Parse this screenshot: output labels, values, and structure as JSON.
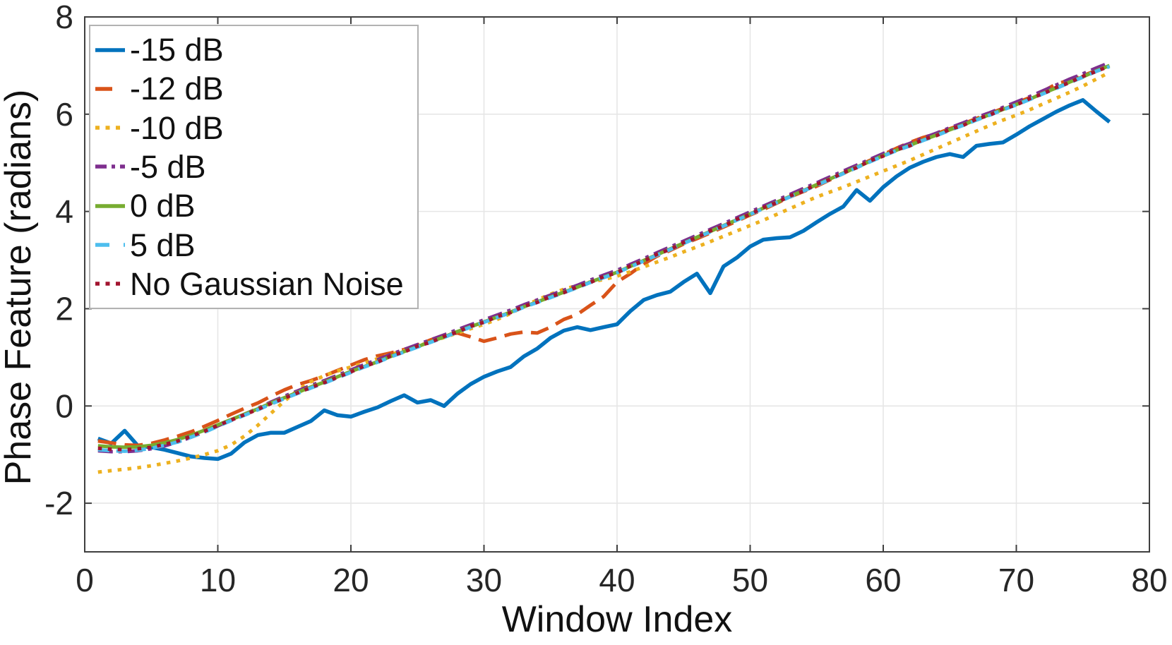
{
  "axes_style": {
    "spine_color": "#3f3f3f",
    "grid_color": "#e6e6e6",
    "tick_label_color": "#262626",
    "background": "#ffffff"
  },
  "chart_data": {
    "type": "line",
    "title": "",
    "xlabel": "Window Index",
    "ylabel": "Phase Feature (radians)",
    "xlim": [
      0,
      80
    ],
    "ylim": [
      -3,
      8
    ],
    "xticks": [
      0,
      10,
      20,
      30,
      40,
      50,
      60,
      70,
      80
    ],
    "yticks": [
      -2,
      0,
      2,
      4,
      6,
      8
    ],
    "grid": true,
    "legend_position": "top-left",
    "x": [
      1,
      2,
      3,
      4,
      5,
      6,
      7,
      8,
      9,
      10,
      11,
      12,
      13,
      14,
      15,
      16,
      17,
      18,
      19,
      20,
      21,
      22,
      23,
      24,
      25,
      26,
      27,
      28,
      29,
      30,
      31,
      32,
      33,
      34,
      35,
      36,
      37,
      38,
      39,
      40,
      41,
      42,
      43,
      44,
      45,
      46,
      47,
      48,
      49,
      50,
      51,
      52,
      53,
      54,
      55,
      56,
      57,
      58,
      59,
      60,
      61,
      62,
      63,
      64,
      65,
      66,
      67,
      68,
      69,
      70,
      71,
      72,
      73,
      74,
      75,
      76,
      77
    ],
    "series": [
      {
        "name": "-15 dB",
        "color": "#0072BD",
        "style": "solid",
        "width": 5.5,
        "values": [
          -0.67,
          -0.77,
          -0.51,
          -0.82,
          -0.85,
          -0.9,
          -0.97,
          -1.04,
          -1.07,
          -1.09,
          -0.98,
          -0.75,
          -0.6,
          -0.55,
          -0.55,
          -0.43,
          -0.31,
          -0.09,
          -0.19,
          -0.22,
          -0.12,
          -0.03,
          0.1,
          0.22,
          0.07,
          0.12,
          0.0,
          0.25,
          0.45,
          0.6,
          0.71,
          0.8,
          1.02,
          1.18,
          1.4,
          1.55,
          1.62,
          1.56,
          1.62,
          1.68,
          1.95,
          2.18,
          2.28,
          2.35,
          2.55,
          2.72,
          2.32,
          2.87,
          3.05,
          3.28,
          3.42,
          3.45,
          3.47,
          3.6,
          3.78,
          3.95,
          4.1,
          4.44,
          4.22,
          4.5,
          4.72,
          4.9,
          5.02,
          5.12,
          5.18,
          5.12,
          5.35,
          5.39,
          5.42,
          5.58,
          5.75,
          5.9,
          6.05,
          6.18,
          6.29,
          6.06,
          5.84
        ]
      },
      {
        "name": "-12 dB",
        "color": "#D95319",
        "style": "dash",
        "width": 5,
        "values": [
          -0.72,
          -0.76,
          -0.8,
          -0.81,
          -0.77,
          -0.7,
          -0.62,
          -0.53,
          -0.42,
          -0.3,
          -0.17,
          -0.05,
          0.06,
          0.2,
          0.33,
          0.44,
          0.52,
          0.62,
          0.73,
          0.84,
          0.95,
          1.03,
          1.09,
          1.16,
          1.25,
          1.36,
          1.46,
          1.5,
          1.42,
          1.33,
          1.4,
          1.48,
          1.52,
          1.5,
          1.62,
          1.78,
          1.88,
          2.07,
          2.25,
          2.55,
          2.72,
          2.92,
          3.08,
          3.2,
          3.33,
          3.44,
          3.56,
          3.68,
          3.8,
          3.93,
          4.04,
          4.17,
          4.3,
          4.41,
          4.52,
          4.65,
          4.78,
          4.92,
          5.05,
          5.17,
          5.3,
          5.42,
          5.52,
          5.6,
          5.7,
          5.8,
          5.91,
          6.01,
          6.12,
          6.23,
          6.34,
          6.47,
          6.62,
          6.7,
          6.79,
          6.9,
          6.98
        ]
      },
      {
        "name": "-10 dB",
        "color": "#EDB120",
        "style": "dot",
        "width": 5,
        "values": [
          -1.36,
          -1.33,
          -1.3,
          -1.27,
          -1.23,
          -1.18,
          -1.13,
          -1.07,
          -1.0,
          -0.92,
          -0.8,
          -0.62,
          -0.4,
          -0.15,
          0.1,
          0.32,
          0.5,
          0.62,
          0.72,
          0.8,
          0.88,
          0.97,
          1.06,
          1.14,
          1.23,
          1.32,
          1.41,
          1.5,
          1.59,
          1.68,
          1.78,
          1.9,
          2.05,
          2.18,
          2.3,
          2.4,
          2.48,
          2.55,
          2.6,
          2.67,
          2.76,
          2.86,
          2.96,
          3.06,
          3.17,
          3.27,
          3.38,
          3.49,
          3.6,
          3.71,
          3.82,
          3.94,
          4.06,
          4.18,
          4.3,
          4.4,
          4.5,
          4.61,
          4.72,
          4.83,
          4.94,
          5.05,
          5.17,
          5.29,
          5.41,
          5.53,
          5.65,
          5.77,
          5.88,
          5.98,
          6.09,
          6.21,
          6.33,
          6.45,
          6.58,
          6.72,
          6.86
        ]
      },
      {
        "name": "-5 dB",
        "color": "#7E2F8E",
        "style": "dashdot",
        "width": 5,
        "values": [
          -0.92,
          -0.94,
          -0.94,
          -0.92,
          -0.88,
          -0.82,
          -0.74,
          -0.64,
          -0.53,
          -0.41,
          -0.29,
          -0.17,
          -0.05,
          0.08,
          0.2,
          0.31,
          0.42,
          0.52,
          0.63,
          0.74,
          0.85,
          0.95,
          1.06,
          1.16,
          1.26,
          1.36,
          1.46,
          1.57,
          1.67,
          1.77,
          1.87,
          1.97,
          2.08,
          2.18,
          2.28,
          2.38,
          2.48,
          2.59,
          2.69,
          2.79,
          2.91,
          3.03,
          3.15,
          3.27,
          3.39,
          3.51,
          3.63,
          3.75,
          3.87,
          3.99,
          4.11,
          4.23,
          4.35,
          4.47,
          4.59,
          4.71,
          4.83,
          4.95,
          5.07,
          5.19,
          5.3,
          5.4,
          5.51,
          5.61,
          5.72,
          5.82,
          5.93,
          6.03,
          6.14,
          6.25,
          6.36,
          6.48,
          6.6,
          6.72,
          6.83,
          6.95,
          7.06
        ]
      },
      {
        "name": "0 dB",
        "color": "#77AC30",
        "style": "solid",
        "width": 5,
        "values": [
          -0.82,
          -0.84,
          -0.85,
          -0.84,
          -0.81,
          -0.76,
          -0.69,
          -0.6,
          -0.5,
          -0.39,
          -0.28,
          -0.17,
          -0.06,
          0.06,
          0.17,
          0.28,
          0.39,
          0.49,
          0.6,
          0.71,
          0.81,
          0.91,
          1.02,
          1.12,
          1.22,
          1.32,
          1.42,
          1.53,
          1.63,
          1.73,
          1.83,
          1.93,
          2.04,
          2.14,
          2.24,
          2.34,
          2.44,
          2.55,
          2.65,
          2.75,
          2.87,
          2.99,
          3.11,
          3.23,
          3.35,
          3.47,
          3.59,
          3.71,
          3.83,
          3.95,
          4.07,
          4.19,
          4.31,
          4.43,
          4.55,
          4.67,
          4.79,
          4.91,
          5.03,
          5.15,
          5.26,
          5.36,
          5.47,
          5.57,
          5.68,
          5.78,
          5.89,
          5.99,
          6.1,
          6.2,
          6.31,
          6.43,
          6.54,
          6.66,
          6.77,
          6.89,
          7.0
        ]
      },
      {
        "name": "5 dB",
        "color": "#4DBEEE",
        "style": "dash2",
        "width": 5,
        "values": [
          -0.9,
          -0.92,
          -0.93,
          -0.91,
          -0.87,
          -0.81,
          -0.74,
          -0.64,
          -0.54,
          -0.42,
          -0.3,
          -0.19,
          -0.08,
          0.04,
          0.15,
          0.26,
          0.37,
          0.47,
          0.58,
          0.69,
          0.8,
          0.9,
          1.01,
          1.11,
          1.21,
          1.31,
          1.41,
          1.52,
          1.62,
          1.72,
          1.82,
          1.92,
          2.03,
          2.13,
          2.23,
          2.33,
          2.43,
          2.54,
          2.64,
          2.74,
          2.86,
          2.98,
          3.1,
          3.22,
          3.34,
          3.46,
          3.58,
          3.7,
          3.82,
          3.94,
          4.06,
          4.18,
          4.3,
          4.42,
          4.54,
          4.66,
          4.78,
          4.9,
          5.02,
          5.14,
          5.25,
          5.35,
          5.46,
          5.56,
          5.67,
          5.77,
          5.88,
          5.98,
          6.09,
          6.19,
          6.3,
          6.42,
          6.53,
          6.65,
          6.76,
          6.88,
          6.98
        ]
      },
      {
        "name": "No Gaussian Noise",
        "color": "#A2142F",
        "style": "dot",
        "width": 5,
        "values": [
          -0.87,
          -0.89,
          -0.9,
          -0.88,
          -0.85,
          -0.79,
          -0.72,
          -0.62,
          -0.52,
          -0.4,
          -0.29,
          -0.18,
          -0.07,
          0.05,
          0.16,
          0.27,
          0.38,
          0.48,
          0.59,
          0.7,
          0.82,
          0.9,
          1.03,
          1.11,
          1.23,
          1.31,
          1.43,
          1.52,
          1.64,
          1.72,
          1.84,
          1.92,
          2.05,
          2.13,
          2.25,
          2.33,
          2.45,
          2.54,
          2.66,
          2.74,
          2.88,
          2.98,
          3.12,
          3.22,
          3.36,
          3.46,
          3.6,
          3.7,
          3.84,
          3.94,
          4.08,
          4.18,
          4.32,
          4.42,
          4.56,
          4.66,
          4.8,
          4.9,
          5.04,
          5.14,
          5.27,
          5.35,
          5.48,
          5.56,
          5.69,
          5.77,
          5.9,
          5.98,
          6.11,
          6.19,
          6.32,
          6.42,
          6.55,
          6.65,
          6.78,
          6.88,
          6.99
        ]
      }
    ]
  }
}
